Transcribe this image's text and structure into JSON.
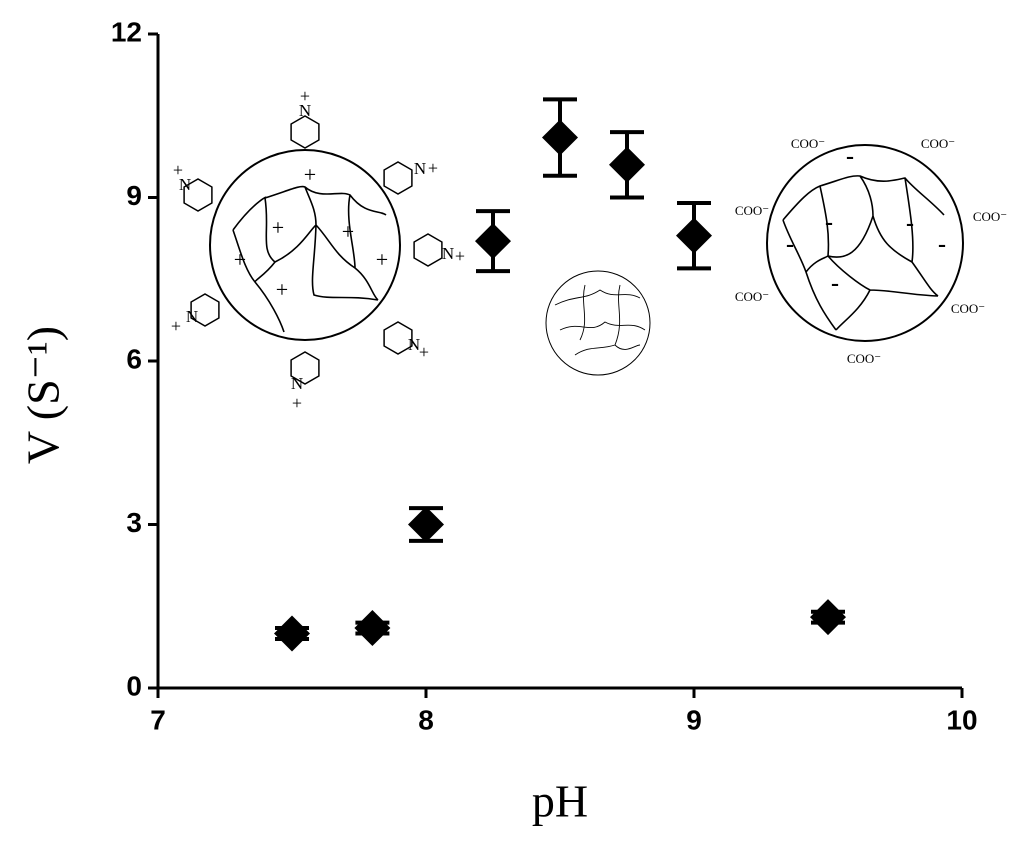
{
  "chart_data": {
    "type": "scatter",
    "x_label": "pH",
    "y_label": "V (S⁻¹)",
    "x": [
      7.5,
      7.8,
      8.0,
      8.25,
      8.5,
      8.75,
      9.0,
      9.5
    ],
    "series": [
      {
        "color": "#000000",
        "values": [
          1.0,
          1.1,
          3.0,
          8.2,
          10.1,
          9.6,
          8.3,
          1.3
        ],
        "errors": [
          0.1,
          0.1,
          0.3,
          0.55,
          0.7,
          0.6,
          0.6,
          0.1
        ]
      }
    ],
    "xlim": [
      7,
      10
    ],
    "xticks": [
      7,
      8,
      9,
      10
    ],
    "ylim": [
      0,
      12
    ],
    "yticks": [
      0,
      3,
      6,
      9,
      12
    ],
    "grid": false,
    "annotations": {
      "cation": "N",
      "plus": "+",
      "carboxylate": "COO⁻",
      "minus": "-"
    }
  }
}
